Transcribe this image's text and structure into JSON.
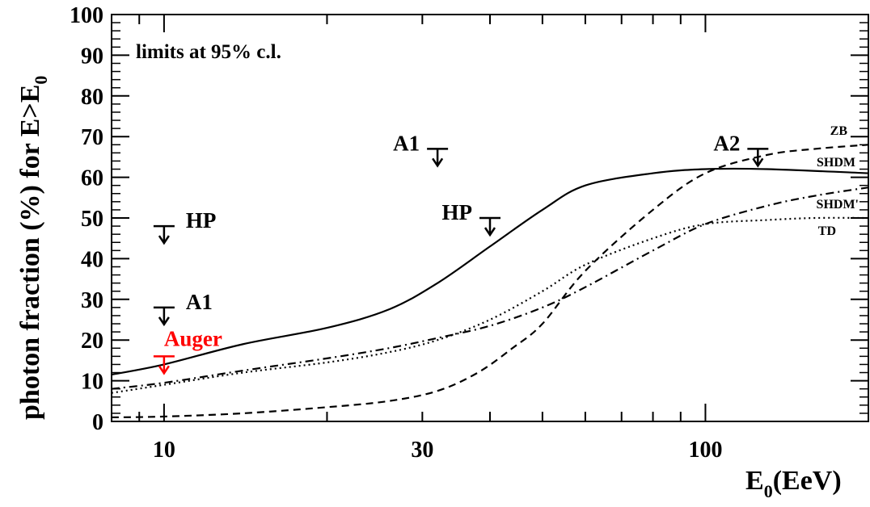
{
  "chart_data": {
    "type": "line",
    "ylabel_main": "photon fraction (%) for E>E",
    "ylabel_sub": "0",
    "xlabel_main": "E",
    "xlabel_sub": "0",
    "xlabel_unit": "(EeV)",
    "annotation": "limits at 95% c.l.",
    "x_scale": "log",
    "xlim": [
      8,
      200
    ],
    "ylim": [
      0,
      100
    ],
    "x_ticks": [
      10,
      30,
      100
    ],
    "x_tick_labels": [
      "10",
      "30",
      "100"
    ],
    "y_ticks": [
      0,
      10,
      20,
      30,
      40,
      50,
      60,
      70,
      80,
      90,
      100
    ],
    "y_tick_labels": [
      "0",
      "10",
      "20",
      "30",
      "40",
      "50",
      "60",
      "70",
      "80",
      "90",
      "100"
    ],
    "series": [
      {
        "name": "SHDM",
        "style": "solid",
        "x": [
          8,
          10,
          14,
          20,
          26,
          32,
          40,
          50,
          60,
          80,
          100,
          130,
          200
        ],
        "y": [
          11.5,
          14,
          19,
          23,
          27.5,
          34,
          43,
          52,
          58,
          61,
          62,
          62,
          61
        ]
      },
      {
        "name": "ZB",
        "style": "dashed",
        "x": [
          8,
          10,
          14,
          20,
          26,
          32,
          38,
          44,
          50,
          60,
          80,
          100,
          130,
          160,
          200
        ],
        "y": [
          1,
          1.2,
          2,
          3.5,
          5,
          7.5,
          12,
          18,
          24,
          37,
          52,
          61,
          65.5,
          67,
          68
        ]
      },
      {
        "name": "SHDM'",
        "style": "dashdot",
        "x": [
          8,
          10,
          14,
          20,
          26,
          32,
          40,
          50,
          60,
          80,
          100,
          130,
          160,
          200
        ],
        "y": [
          8,
          9.5,
          12.5,
          15.5,
          18,
          20.5,
          23.5,
          28,
          33,
          42,
          48.5,
          53,
          55.5,
          57.5
        ]
      },
      {
        "name": "TD",
        "style": "dotted",
        "x": [
          8,
          10,
          14,
          20,
          26,
          32,
          40,
          50,
          60,
          80,
          100,
          130,
          160,
          200
        ],
        "y": [
          7,
          9,
          12,
          14.5,
          17,
          20,
          25,
          32,
          38.5,
          45,
          48.5,
          49.5,
          50,
          50
        ]
      }
    ],
    "limits": [
      {
        "label": "HP",
        "x": 10,
        "y": 48,
        "color": "#000000",
        "label_side": "right"
      },
      {
        "label": "A1",
        "x": 10,
        "y": 28,
        "color": "#000000",
        "label_side": "right"
      },
      {
        "label": "Auger",
        "x": 10,
        "y": 16,
        "color": "#ff0000",
        "label_side": "right-up"
      },
      {
        "label": "A1",
        "x": 32,
        "y": 67,
        "color": "#000000",
        "label_side": "left"
      },
      {
        "label": "HP",
        "x": 40,
        "y": 50,
        "color": "#000000",
        "label_side": "left"
      },
      {
        "label": "A2",
        "x": 125,
        "y": 67,
        "color": "#000000",
        "label_side": "left"
      }
    ]
  }
}
